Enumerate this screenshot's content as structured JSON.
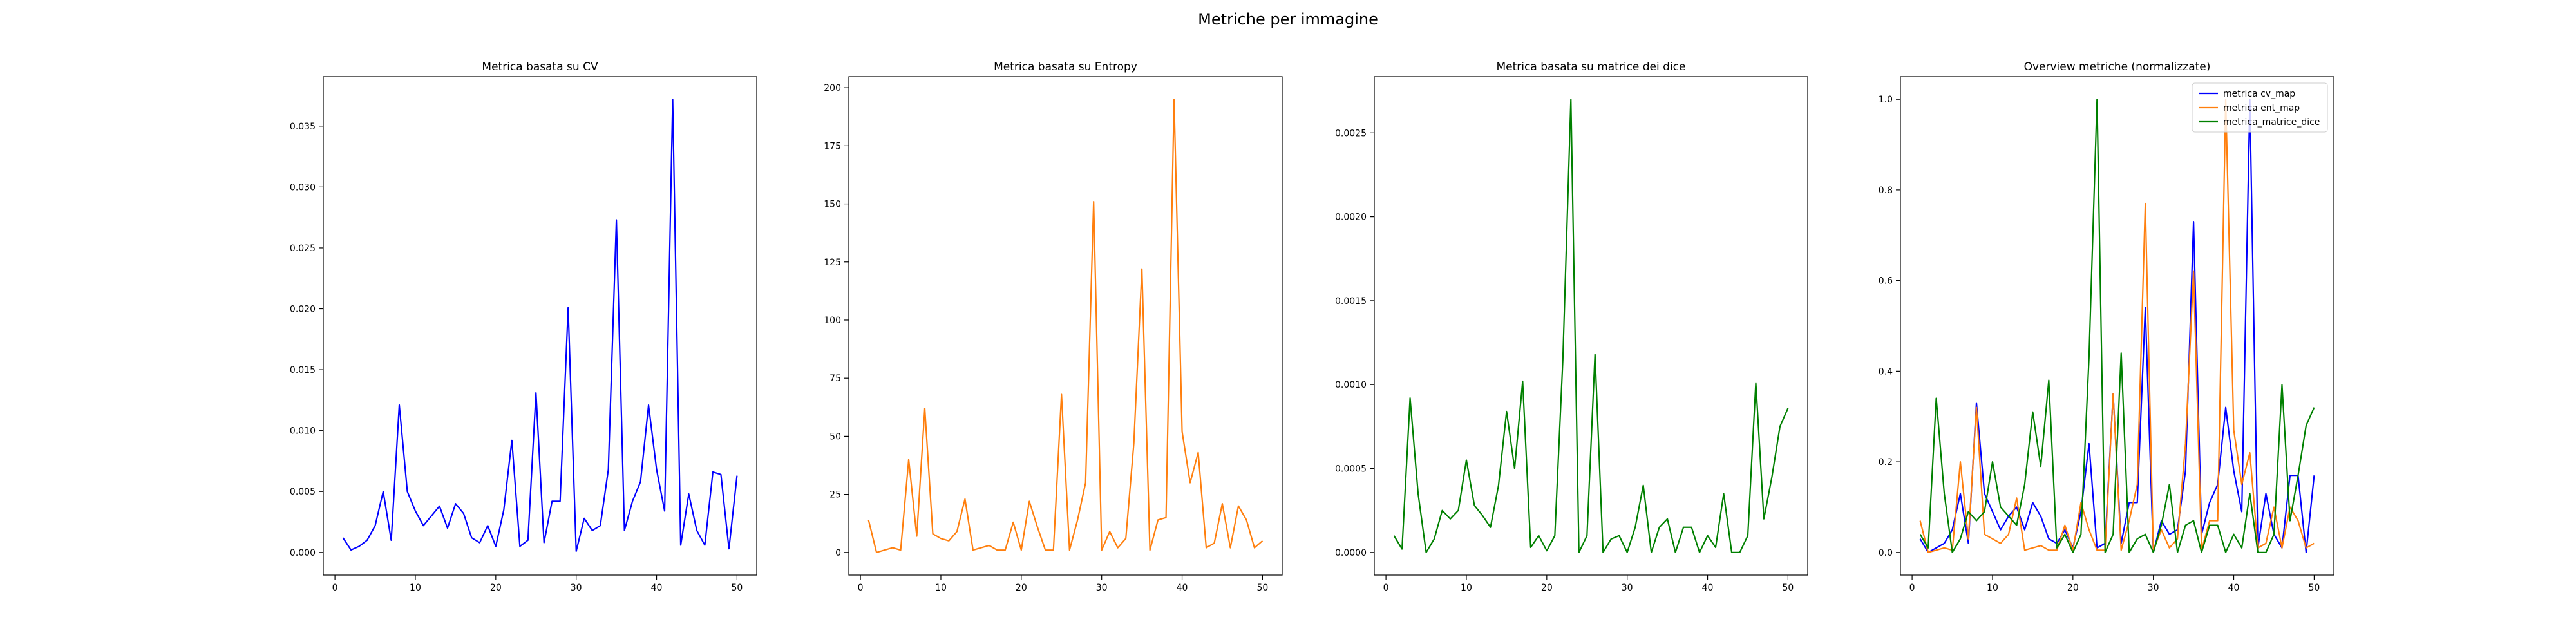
{
  "figure": {
    "suptitle": "Metriche per immagine"
  },
  "chart_data": [
    {
      "type": "line",
      "title": "Metrica basata su CV",
      "xlabel": "",
      "ylabel": "",
      "xlim": [
        -1.45,
        52.45
      ],
      "ylim": [
        -0.00186,
        0.03906
      ],
      "xticks": [
        0,
        10,
        20,
        30,
        40,
        50
      ],
      "yticks": [
        0.0,
        0.005,
        0.01,
        0.015,
        0.02,
        0.025,
        0.03,
        0.035
      ],
      "ytick_labels": [
        "0.000",
        "0.005",
        "0.010",
        "0.015",
        "0.020",
        "0.025",
        "0.030",
        "0.035"
      ],
      "grid": false,
      "series": [
        {
          "color": "#0000ff",
          "x": [
            1,
            2,
            3,
            4,
            5,
            6,
            7,
            8,
            9,
            10,
            11,
            12,
            13,
            14,
            15,
            16,
            17,
            18,
            19,
            20,
            21,
            22,
            23,
            24,
            25,
            26,
            27,
            28,
            29,
            30,
            31,
            32,
            33,
            34,
            35,
            36,
            37,
            38,
            39,
            40,
            41,
            42,
            43,
            44,
            45,
            46,
            47,
            48,
            49,
            50
          ],
          "y": [
            0.0012,
            0.0002,
            0.0005,
            0.001,
            0.0022,
            0.005,
            0.001,
            0.0121,
            0.005,
            0.0034,
            0.0022,
            0.003,
            0.0038,
            0.002,
            0.004,
            0.0032,
            0.0012,
            0.0008,
            0.0022,
            0.0005,
            0.0035,
            0.0092,
            0.0005,
            0.001,
            0.0131,
            0.0008,
            0.0042,
            0.0042,
            0.0201,
            0.0001,
            0.0028,
            0.0018,
            0.0022,
            0.0068,
            0.0273,
            0.0018,
            0.0042,
            0.0058,
            0.0121,
            0.0068,
            0.0034,
            0.0372,
            0.0006,
            0.0048,
            0.0018,
            0.0006,
            0.0066,
            0.0064,
            0.0003,
            0.0063
          ]
        }
      ]
    },
    {
      "type": "line",
      "title": "Metrica basata su Entropy",
      "xlabel": "",
      "ylabel": "",
      "xlim": [
        -1.45,
        52.45
      ],
      "ylim": [
        -9.75,
        204.75
      ],
      "xticks": [
        0,
        10,
        20,
        30,
        40,
        50
      ],
      "yticks": [
        0,
        25,
        50,
        75,
        100,
        125,
        150,
        175,
        200
      ],
      "ytick_labels": [
        "0",
        "25",
        "50",
        "75",
        "100",
        "125",
        "150",
        "175",
        "200"
      ],
      "grid": false,
      "series": [
        {
          "color": "#ff7f0e",
          "x": [
            1,
            2,
            3,
            4,
            5,
            6,
            7,
            8,
            9,
            10,
            11,
            12,
            13,
            14,
            15,
            16,
            17,
            18,
            19,
            20,
            21,
            22,
            23,
            24,
            25,
            26,
            27,
            28,
            29,
            30,
            31,
            32,
            33,
            34,
            35,
            36,
            37,
            38,
            39,
            40,
            41,
            42,
            43,
            44,
            45,
            46,
            47,
            48,
            49,
            50
          ],
          "y": [
            14,
            0,
            1,
            2,
            1,
            40,
            7,
            62,
            8,
            6,
            5,
            9,
            23,
            1,
            2,
            3,
            1,
            1,
            13,
            1,
            22,
            11,
            1,
            1,
            68,
            1,
            14,
            30,
            151,
            1,
            9,
            2,
            6,
            47,
            122,
            1,
            14,
            15,
            195,
            52,
            30,
            43,
            2,
            4,
            21,
            2,
            20,
            14,
            2,
            5
          ]
        }
      ]
    },
    {
      "type": "line",
      "title": "Metrica basata su matrice dei dice",
      "xlabel": "",
      "ylabel": "",
      "xlim": [
        -1.45,
        52.45
      ],
      "ylim": [
        -0.000135,
        0.002835
      ],
      "xticks": [
        0,
        10,
        20,
        30,
        40,
        50
      ],
      "yticks": [
        0.0,
        0.0005,
        0.001,
        0.0015,
        0.002,
        0.0025
      ],
      "ytick_labels": [
        "0.0000",
        "0.0005",
        "0.0010",
        "0.0015",
        "0.0020",
        "0.0025"
      ],
      "grid": false,
      "series": [
        {
          "color": "#008000",
          "x": [
            1,
            2,
            3,
            4,
            5,
            6,
            7,
            8,
            9,
            10,
            11,
            12,
            13,
            14,
            15,
            16,
            17,
            18,
            19,
            20,
            21,
            22,
            23,
            24,
            25,
            26,
            27,
            28,
            29,
            30,
            31,
            32,
            33,
            34,
            35,
            36,
            37,
            38,
            39,
            40,
            41,
            42,
            43,
            44,
            45,
            46,
            47,
            48,
            49,
            50
          ],
          "y": [
            0.0001,
            2e-05,
            0.00092,
            0.00035,
            0.0,
            8e-05,
            0.00025,
            0.0002,
            0.00025,
            0.00055,
            0.00028,
            0.00022,
            0.00015,
            0.0004,
            0.00084,
            0.0005,
            0.00102,
            3e-05,
            0.0001,
            1e-05,
            0.0001,
            0.00115,
            0.0027,
            0.0,
            0.0001,
            0.00118,
            0.0,
            8e-05,
            0.0001,
            0.0,
            0.00015,
            0.0004,
            0.0,
            0.00015,
            0.0002,
            0.0,
            0.00015,
            0.00015,
            0.0,
            0.0001,
            3e-05,
            0.00035,
            0.0,
            0.0,
            0.0001,
            0.00101,
            0.0002,
            0.00045,
            0.00075,
            0.00086
          ]
        }
      ]
    },
    {
      "type": "line",
      "title": "Overview metriche (normalizzate)",
      "xlabel": "",
      "ylabel": "",
      "xlim": [
        -1.45,
        52.45
      ],
      "ylim": [
        -0.05,
        1.05
      ],
      "xticks": [
        0,
        10,
        20,
        30,
        40,
        50
      ],
      "yticks": [
        0.0,
        0.2,
        0.4,
        0.6,
        0.8,
        1.0
      ],
      "ytick_labels": [
        "0.0",
        "0.2",
        "0.4",
        "0.6",
        "0.8",
        "1.0"
      ],
      "grid": false,
      "legend": "upper right",
      "series": [
        {
          "name": "metrica cv_map",
          "color": "#0000ff",
          "x": [
            1,
            2,
            3,
            4,
            5,
            6,
            7,
            8,
            9,
            10,
            11,
            12,
            13,
            14,
            15,
            16,
            17,
            18,
            19,
            20,
            21,
            22,
            23,
            24,
            25,
            26,
            27,
            28,
            29,
            30,
            31,
            32,
            33,
            34,
            35,
            36,
            37,
            38,
            39,
            40,
            41,
            42,
            43,
            44,
            45,
            46,
            47,
            48,
            49,
            50
          ],
          "y": [
            0.03,
            0.0,
            0.01,
            0.02,
            0.05,
            0.13,
            0.02,
            0.33,
            0.13,
            0.09,
            0.05,
            0.08,
            0.1,
            0.05,
            0.11,
            0.08,
            0.03,
            0.02,
            0.05,
            0.01,
            0.09,
            0.24,
            0.01,
            0.02,
            0.35,
            0.02,
            0.11,
            0.11,
            0.54,
            0.0,
            0.07,
            0.04,
            0.05,
            0.18,
            0.73,
            0.04,
            0.11,
            0.15,
            0.32,
            0.18,
            0.09,
            1.0,
            0.01,
            0.13,
            0.04,
            0.01,
            0.17,
            0.17,
            0.0,
            0.17
          ]
        },
        {
          "name": "metrica ent_map",
          "color": "#ff7f0e",
          "x": [
            1,
            2,
            3,
            4,
            5,
            6,
            7,
            8,
            9,
            10,
            11,
            12,
            13,
            14,
            15,
            16,
            17,
            18,
            19,
            20,
            21,
            22,
            23,
            24,
            25,
            26,
            27,
            28,
            29,
            30,
            31,
            32,
            33,
            34,
            35,
            36,
            37,
            38,
            39,
            40,
            41,
            42,
            43,
            44,
            45,
            46,
            47,
            48,
            49,
            50
          ],
          "y": [
            0.07,
            0.0,
            0.005,
            0.01,
            0.005,
            0.2,
            0.03,
            0.32,
            0.04,
            0.03,
            0.02,
            0.04,
            0.12,
            0.005,
            0.01,
            0.015,
            0.005,
            0.005,
            0.06,
            0.005,
            0.11,
            0.05,
            0.005,
            0.005,
            0.35,
            0.005,
            0.07,
            0.15,
            0.77,
            0.005,
            0.05,
            0.01,
            0.03,
            0.24,
            0.62,
            0.005,
            0.07,
            0.07,
            1.0,
            0.27,
            0.15,
            0.22,
            0.01,
            0.02,
            0.1,
            0.01,
            0.1,
            0.07,
            0.01,
            0.02
          ]
        },
        {
          "name": "metrica_matrice_dice",
          "color": "#008000",
          "x": [
            1,
            2,
            3,
            4,
            5,
            6,
            7,
            8,
            9,
            10,
            11,
            12,
            13,
            14,
            15,
            16,
            17,
            18,
            19,
            20,
            21,
            22,
            23,
            24,
            25,
            26,
            27,
            28,
            29,
            30,
            31,
            32,
            33,
            34,
            35,
            36,
            37,
            38,
            39,
            40,
            41,
            42,
            43,
            44,
            45,
            46,
            47,
            48,
            49,
            50
          ],
          "y": [
            0.04,
            0.01,
            0.34,
            0.13,
            0.0,
            0.03,
            0.09,
            0.07,
            0.09,
            0.2,
            0.1,
            0.08,
            0.06,
            0.15,
            0.31,
            0.19,
            0.38,
            0.01,
            0.04,
            0.0,
            0.04,
            0.43,
            1.0,
            0.0,
            0.04,
            0.44,
            0.0,
            0.03,
            0.04,
            0.0,
            0.06,
            0.15,
            0.0,
            0.06,
            0.07,
            0.0,
            0.06,
            0.06,
            0.0,
            0.04,
            0.01,
            0.13,
            0.0,
            0.0,
            0.04,
            0.37,
            0.07,
            0.17,
            0.28,
            0.32
          ]
        }
      ]
    }
  ]
}
